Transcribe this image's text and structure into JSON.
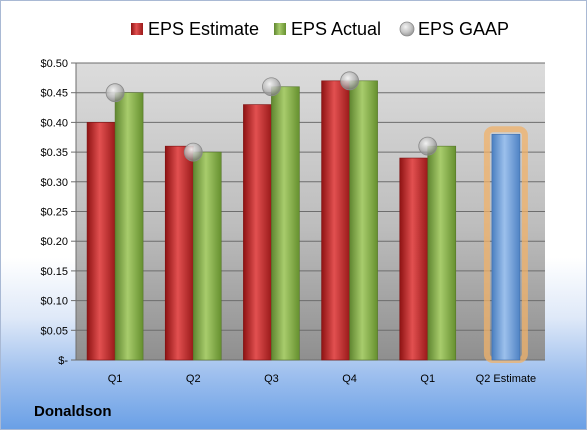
{
  "company": "Donaldson",
  "chart_data": {
    "type": "bar",
    "categories": [
      "Q1",
      "Q2",
      "Q3",
      "Q4",
      "Q1",
      "Q2 Estimate"
    ],
    "series": [
      {
        "name": "EPS Estimate",
        "color": "#cc2a2a",
        "values": [
          0.4,
          0.36,
          0.43,
          0.47,
          0.34,
          null
        ]
      },
      {
        "name": "EPS Actual",
        "color": "#8cb14f",
        "values": [
          0.45,
          0.35,
          0.46,
          0.47,
          0.36,
          0.38
        ]
      },
      {
        "name": "EPS GAAP",
        "color": "#a9a9a9",
        "marker": "circle",
        "values": [
          0.45,
          0.35,
          0.46,
          0.47,
          0.36,
          null
        ]
      }
    ],
    "highlight": {
      "category_index": 5,
      "value": 0.38,
      "color": "#6f9fd6",
      "glow": "#f0b26a"
    },
    "yticks": [
      "$-",
      "$0.05",
      "$0.10",
      "$0.15",
      "$0.20",
      "$0.25",
      "$0.30",
      "$0.35",
      "$0.40",
      "$0.45",
      "$0.50"
    ],
    "ylim": [
      0,
      0.5
    ],
    "legend_position": "top",
    "grid": true
  }
}
